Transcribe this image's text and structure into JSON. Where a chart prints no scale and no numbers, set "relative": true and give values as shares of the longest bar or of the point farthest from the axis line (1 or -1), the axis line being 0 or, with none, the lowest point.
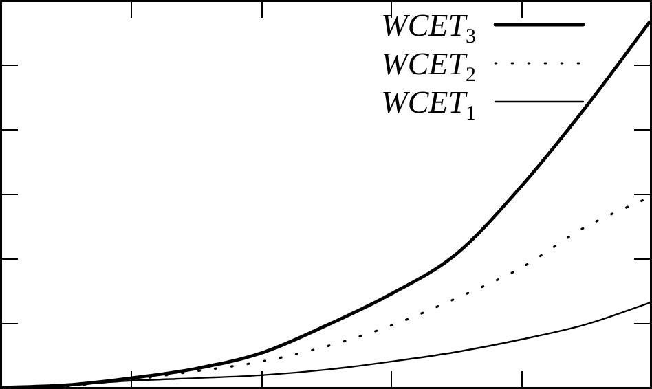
{
  "chart_data": {
    "type": "line",
    "relative": true,
    "legend": "top right",
    "marker": "none",
    "categories": [
      null,
      null,
      null,
      null,
      null,
      null,
      null,
      null,
      null,
      null,
      null
    ],
    "series": [
      {
        "name": "WCET$_{3}$",
        "color": "#000000",
        "line_style": "solid",
        "values": [
          0,
          0.007,
          0.026,
          0.052,
          0.094,
          0.169,
          0.255,
          0.363,
          0.547,
          0.764,
          1
        ]
      },
      {
        "name": "WCET$_{2}$",
        "color": "#000000",
        "line_style": "dotted",
        "values": [
          0,
          0.004,
          0.022,
          0.045,
          0.071,
          0.112,
          0.169,
          0.243,
          0.326,
          0.438,
          0.52
        ]
      },
      {
        "name": "WCET$_{1}$",
        "color": "#000000",
        "line_style": "solid",
        "values": [
          0,
          0.007,
          0.019,
          0.026,
          0.034,
          0.049,
          0.071,
          0.097,
          0.131,
          0.172,
          0.232
        ]
      }
    ]
  }
}
